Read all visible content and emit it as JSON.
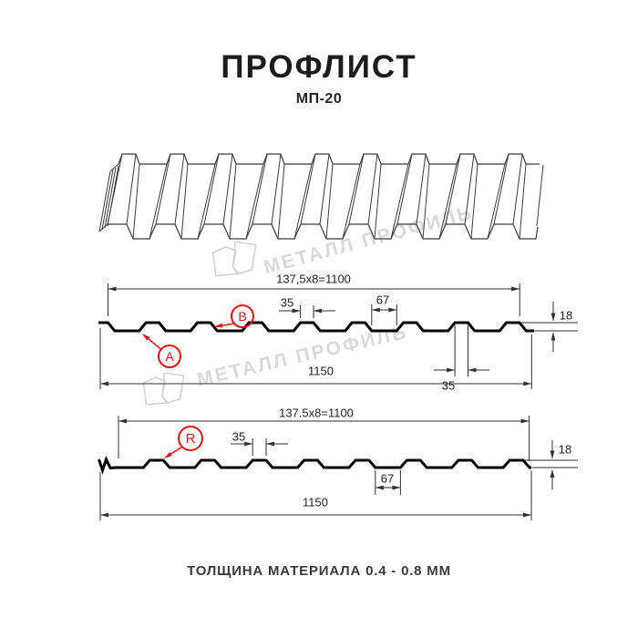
{
  "header": {
    "title": "ПРОФЛИСТ",
    "subtitle": "МП-20"
  },
  "watermark": {
    "text": "МЕТАЛЛ ПРОФИЛЬ"
  },
  "footer": {
    "note": "ТОЛЩИНА МАТЕРИАЛА 0.4 - 0.8 ММ"
  },
  "colors": {
    "accent_red": "#ee1111",
    "profile_line": "#000000",
    "dimension_line": "#2f2f2f",
    "watermark_gray": "#d9d9d9"
  },
  "diagram": {
    "top": {
      "pitch": "137,5x8=1100",
      "rib_top_width": "35",
      "valley_width": "67",
      "height": "18",
      "rib_bottom_width": "35",
      "overall_width": "1150",
      "label_a": "A",
      "label_b": "B"
    },
    "bottom": {
      "pitch": "137.5x8=1100",
      "rib_top_width": "35",
      "valley_width": "67",
      "height": "18",
      "overall_width": "1150",
      "label_r": "R"
    }
  }
}
